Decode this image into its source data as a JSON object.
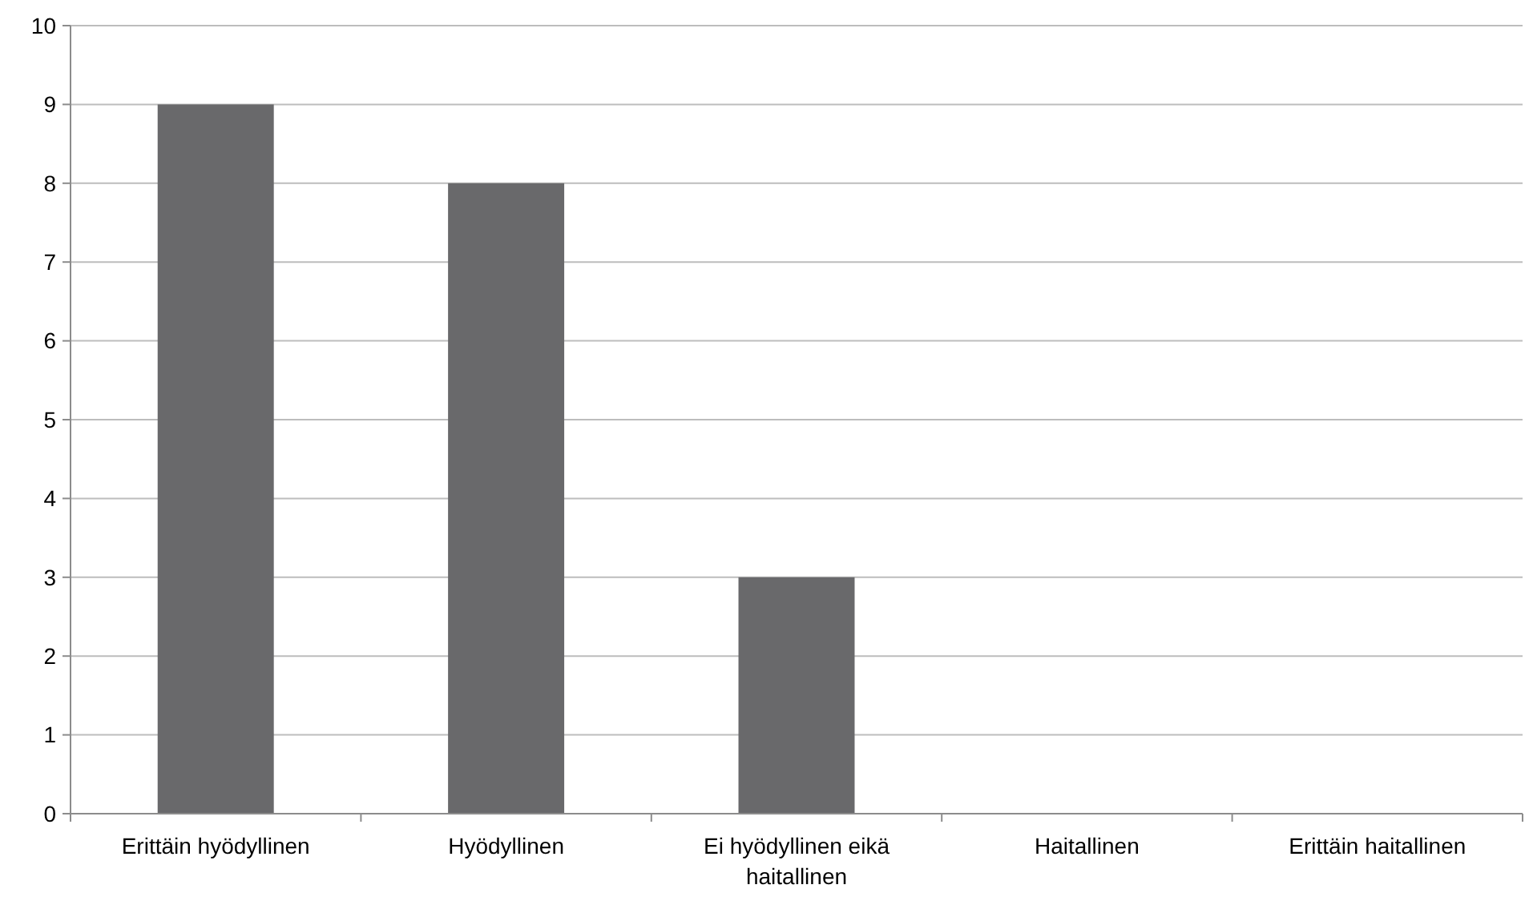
{
  "chart_data": {
    "type": "bar",
    "categories": [
      "Erittäin hyödyllinen",
      "Hyödyllinen",
      "Ei hyödyllinen eikä haitallinen",
      "Haitallinen",
      "Erittäin haitallinen"
    ],
    "values": [
      9,
      8,
      3,
      0,
      0
    ],
    "color": "#69696b",
    "ylim": [
      0,
      10
    ],
    "yticks": [
      0,
      1,
      2,
      3,
      4,
      5,
      6,
      7,
      8,
      9,
      10
    ],
    "grid": "y"
  }
}
